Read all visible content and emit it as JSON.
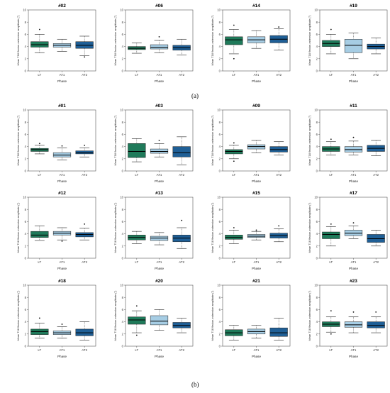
{
  "figure": {
    "panel_labels": [
      "(a)",
      "(b)"
    ],
    "colors": {
      "LT": "#1f7a5a",
      "AT1": "#a6cde4",
      "AT2": "#1f5f96",
      "whisker": "#444444",
      "axis": "#555555"
    }
  },
  "chart_data": [
    {
      "type": "box",
      "title": "#02",
      "xlabel": "Phase",
      "ylabel": "Mean T18 flexion-extension amplitude (°)",
      "categories": [
        "LT",
        "AT1",
        "AT2"
      ],
      "ylim": [
        0,
        10
      ],
      "yticks": [
        0,
        2,
        4,
        6,
        8,
        10
      ],
      "boxes": [
        {
          "min": 3.0,
          "q1": 3.9,
          "median": 4.3,
          "q3": 4.8,
          "max": 6.0,
          "outliers": [
            6.8
          ]
        },
        {
          "min": 3.2,
          "q1": 3.9,
          "median": 4.2,
          "q3": 4.5,
          "max": 5.2,
          "outliers": []
        },
        {
          "min": 2.5,
          "q1": 3.7,
          "median": 4.2,
          "q3": 4.8,
          "max": 5.7,
          "outliers": [
            2.3
          ]
        }
      ]
    },
    {
      "type": "box",
      "title": "#06",
      "xlabel": "Phase",
      "ylabel": "Mean T18 flexion-extension amplitude (°)",
      "categories": [
        "LT",
        "AT1",
        "AT2"
      ],
      "ylim": [
        0,
        10
      ],
      "yticks": [
        0,
        2,
        4,
        6,
        8,
        10
      ],
      "boxes": [
        {
          "min": 2.9,
          "q1": 3.5,
          "median": 3.7,
          "q3": 4.0,
          "max": 4.6,
          "outliers": []
        },
        {
          "min": 3.0,
          "q1": 3.6,
          "median": 3.9,
          "q3": 4.3,
          "max": 5.0,
          "outliers": [
            5.6
          ]
        },
        {
          "min": 2.6,
          "q1": 3.4,
          "median": 3.8,
          "q3": 4.2,
          "max": 5.2,
          "outliers": []
        }
      ]
    },
    {
      "type": "box",
      "title": "#14",
      "xlabel": "Phase",
      "ylabel": "Mean T18 flexion-extension amplitude (°)",
      "categories": [
        "LT",
        "AT1",
        "AT2"
      ],
      "ylim": [
        0,
        10
      ],
      "yticks": [
        0,
        2,
        4,
        6,
        8,
        10
      ],
      "boxes": [
        {
          "min": 2.8,
          "q1": 4.3,
          "median": 5.1,
          "q3": 5.6,
          "max": 6.8,
          "outliers": [
            2.0,
            7.5
          ]
        },
        {
          "min": 3.7,
          "q1": 4.6,
          "median": 5.1,
          "q3": 5.6,
          "max": 6.6,
          "outliers": []
        },
        {
          "min": 3.4,
          "q1": 4.6,
          "median": 5.2,
          "q3": 5.8,
          "max": 6.9,
          "outliers": [
            7.2
          ]
        }
      ]
    },
    {
      "type": "box",
      "title": "#19",
      "xlabel": "Phase",
      "ylabel": "Mean T18 flexion-extension amplitude (°)",
      "categories": [
        "LT",
        "AT1",
        "AT2"
      ],
      "ylim": [
        0,
        10
      ],
      "yticks": [
        0,
        2,
        4,
        6,
        8,
        10
      ],
      "boxes": [
        {
          "min": 2.8,
          "q1": 4.0,
          "median": 4.5,
          "q3": 5.0,
          "max": 6.0,
          "outliers": [
            6.8
          ]
        },
        {
          "min": 2.0,
          "q1": 3.0,
          "median": 4.2,
          "q3": 5.2,
          "max": 6.2,
          "outliers": []
        },
        {
          "min": 2.8,
          "q1": 3.6,
          "median": 4.0,
          "q3": 4.4,
          "max": 5.4,
          "outliers": []
        }
      ]
    },
    {
      "type": "box",
      "title": "#01",
      "xlabel": "Phase",
      "ylabel": "Mean T18 flexion-extension amplitude (°)",
      "categories": [
        "LT",
        "AT1",
        "AT2"
      ],
      "ylim": [
        0,
        10
      ],
      "yticks": [
        0,
        2,
        4,
        6,
        8,
        10
      ],
      "boxes": [
        {
          "min": 2.8,
          "q1": 3.2,
          "median": 3.5,
          "q3": 3.7,
          "max": 4.2,
          "outliers": [
            4.5
          ]
        },
        {
          "min": 1.8,
          "q1": 2.3,
          "median": 2.6,
          "q3": 3.0,
          "max": 3.8,
          "outliers": [
            4.1
          ]
        },
        {
          "min": 2.3,
          "q1": 2.8,
          "median": 3.0,
          "q3": 3.3,
          "max": 3.8,
          "outliers": [
            4.2
          ]
        }
      ]
    },
    {
      "type": "box",
      "title": "#03",
      "xlabel": "Phase",
      "ylabel": "Mean T18 flexion-extension amplitude (°)",
      "categories": [
        "LT",
        "AT1",
        "AT2"
      ],
      "ylim": [
        0,
        10
      ],
      "yticks": [
        0,
        2,
        4,
        6,
        8,
        10
      ],
      "boxes": [
        {
          "min": 1.5,
          "q1": 2.2,
          "median": 3.2,
          "q3": 4.5,
          "max": 5.3,
          "outliers": []
        },
        {
          "min": 2.3,
          "q1": 2.9,
          "median": 3.2,
          "q3": 3.6,
          "max": 4.5,
          "outliers": [
            5.0
          ]
        },
        {
          "min": 1.0,
          "q1": 2.3,
          "median": 3.0,
          "q3": 4.0,
          "max": 5.6,
          "outliers": []
        }
      ]
    },
    {
      "type": "box",
      "title": "#09",
      "xlabel": "Phase",
      "ylabel": "Mean T18 flexion-extension amplitude (°)",
      "categories": [
        "LT",
        "AT1",
        "AT2"
      ],
      "ylim": [
        0,
        10
      ],
      "yticks": [
        0,
        2,
        4,
        6,
        8,
        10
      ],
      "boxes": [
        {
          "min": 2.0,
          "q1": 2.8,
          "median": 3.2,
          "q3": 3.5,
          "max": 4.2,
          "outliers": [
            1.6,
            4.6
          ]
        },
        {
          "min": 3.0,
          "q1": 3.6,
          "median": 4.0,
          "q3": 4.3,
          "max": 5.0,
          "outliers": []
        },
        {
          "min": 2.6,
          "q1": 3.1,
          "median": 3.5,
          "q3": 4.0,
          "max": 4.8,
          "outliers": []
        }
      ]
    },
    {
      "type": "box",
      "title": "#11",
      "xlabel": "Phase",
      "ylabel": "Mean T18 flexion-extension amplitude (°)",
      "categories": [
        "LT",
        "AT1",
        "AT2"
      ],
      "ylim": [
        0,
        10
      ],
      "yticks": [
        0,
        2,
        4,
        6,
        8,
        10
      ],
      "boxes": [
        {
          "min": 2.6,
          "q1": 3.2,
          "median": 3.6,
          "q3": 4.0,
          "max": 4.8,
          "outliers": [
            5.2
          ]
        },
        {
          "min": 2.6,
          "q1": 3.1,
          "median": 3.5,
          "q3": 4.0,
          "max": 4.9,
          "outliers": [
            5.5
          ]
        },
        {
          "min": 2.5,
          "q1": 3.2,
          "median": 3.7,
          "q3": 4.2,
          "max": 5.0,
          "outliers": []
        }
      ]
    },
    {
      "type": "box",
      "title": "#12",
      "xlabel": "Phase",
      "ylabel": "Mean T18 flexion-extension amplitude (°)",
      "categories": [
        "LT",
        "AT1",
        "AT2"
      ],
      "ylim": [
        0,
        10
      ],
      "yticks": [
        0,
        2,
        4,
        6,
        8,
        10
      ],
      "boxes": [
        {
          "min": 2.9,
          "q1": 3.4,
          "median": 3.8,
          "q3": 4.4,
          "max": 5.3,
          "outliers": []
        },
        {
          "min": 3.0,
          "q1": 3.8,
          "median": 4.1,
          "q3": 4.4,
          "max": 5.0,
          "outliers": [
            2.8
          ]
        },
        {
          "min": 3.0,
          "q1": 3.5,
          "median": 3.9,
          "q3": 4.2,
          "max": 4.9,
          "outliers": [
            5.6
          ]
        }
      ]
    },
    {
      "type": "box",
      "title": "#13",
      "xlabel": "Phase",
      "ylabel": "Mean T18 flexion-extension amplitude (°)",
      "categories": [
        "LT",
        "AT1",
        "AT2"
      ],
      "ylim": [
        0,
        10
      ],
      "yticks": [
        0,
        2,
        4,
        6,
        8,
        10
      ],
      "boxes": [
        {
          "min": 2.4,
          "q1": 3.0,
          "median": 3.4,
          "q3": 3.8,
          "max": 4.4,
          "outliers": []
        },
        {
          "min": 2.2,
          "q1": 2.9,
          "median": 3.3,
          "q3": 3.6,
          "max": 4.2,
          "outliers": []
        },
        {
          "min": 1.6,
          "q1": 2.7,
          "median": 3.3,
          "q3": 3.8,
          "max": 5.0,
          "outliers": [
            6.2
          ]
        }
      ]
    },
    {
      "type": "box",
      "title": "#15",
      "xlabel": "Phase",
      "ylabel": "Mean T18 flexion-extension amplitude (°)",
      "categories": [
        "LT",
        "AT1",
        "AT2"
      ],
      "ylim": [
        0,
        10
      ],
      "yticks": [
        0,
        2,
        4,
        6,
        8,
        10
      ],
      "boxes": [
        {
          "min": 2.4,
          "q1": 3.1,
          "median": 3.4,
          "q3": 3.8,
          "max": 4.6,
          "outliers": [
            5.0
          ]
        },
        {
          "min": 3.0,
          "q1": 3.4,
          "median": 3.6,
          "q3": 3.9,
          "max": 4.4,
          "outliers": [
            4.6
          ]
        },
        {
          "min": 2.7,
          "q1": 3.3,
          "median": 3.7,
          "q3": 4.1,
          "max": 4.8,
          "outliers": [
            5.3
          ]
        }
      ]
    },
    {
      "type": "box",
      "title": "#17",
      "xlabel": "Phase",
      "ylabel": "Mean T18 flexion-extension amplitude (°)",
      "categories": [
        "LT",
        "AT1",
        "AT2"
      ],
      "ylim": [
        0,
        10
      ],
      "yticks": [
        0,
        2,
        4,
        6,
        8,
        10
      ],
      "boxes": [
        {
          "min": 2.0,
          "q1": 3.2,
          "median": 3.9,
          "q3": 4.3,
          "max": 5.2,
          "outliers": [
            5.6
          ]
        },
        {
          "min": 3.2,
          "q1": 3.7,
          "median": 4.1,
          "q3": 4.6,
          "max": 5.3,
          "outliers": [
            5.8
          ]
        },
        {
          "min": 2.0,
          "q1": 2.6,
          "median": 3.2,
          "q3": 3.9,
          "max": 4.6,
          "outliers": []
        }
      ]
    },
    {
      "type": "box",
      "title": "#18",
      "xlabel": "Phase",
      "ylabel": "Mean T18 flexion-extension amplitude (°)",
      "categories": [
        "LT",
        "AT1",
        "AT2"
      ],
      "ylim": [
        0,
        10
      ],
      "yticks": [
        0,
        2,
        4,
        6,
        8,
        10
      ],
      "boxes": [
        {
          "min": 1.3,
          "q1": 1.9,
          "median": 2.4,
          "q3": 2.8,
          "max": 3.8,
          "outliers": [
            4.6
          ]
        },
        {
          "min": 1.3,
          "q1": 1.9,
          "median": 2.2,
          "q3": 2.5,
          "max": 3.2,
          "outliers": [
            3.6
          ]
        },
        {
          "min": 1.0,
          "q1": 1.7,
          "median": 2.2,
          "q3": 2.8,
          "max": 4.0,
          "outliers": []
        }
      ]
    },
    {
      "type": "box",
      "title": "#20",
      "xlabel": "Phase",
      "ylabel": "Mean T18 flexion-extension amplitude (°)",
      "categories": [
        "LT",
        "AT1",
        "AT2"
      ],
      "ylim": [
        0,
        10
      ],
      "yticks": [
        0,
        2,
        4,
        6,
        8,
        10
      ],
      "boxes": [
        {
          "min": 2.2,
          "q1": 3.6,
          "median": 4.3,
          "q3": 4.8,
          "max": 5.8,
          "outliers": [
            6.6,
            1.8
          ]
        },
        {
          "min": 2.6,
          "q1": 3.5,
          "median": 4.1,
          "q3": 5.0,
          "max": 6.0,
          "outliers": []
        },
        {
          "min": 2.2,
          "q1": 3.0,
          "median": 3.4,
          "q3": 3.9,
          "max": 4.6,
          "outliers": []
        }
      ]
    },
    {
      "type": "box",
      "title": "#21",
      "xlabel": "Phase",
      "ylabel": "Mean T18 flexion-extension amplitude (°)",
      "categories": [
        "LT",
        "AT1",
        "AT2"
      ],
      "ylim": [
        0,
        10
      ],
      "yticks": [
        0,
        2,
        4,
        6,
        8,
        10
      ],
      "boxes": [
        {
          "min": 1.0,
          "q1": 1.7,
          "median": 2.2,
          "q3": 2.7,
          "max": 3.4,
          "outliers": []
        },
        {
          "min": 1.3,
          "q1": 2.0,
          "median": 2.4,
          "q3": 2.8,
          "max": 3.4,
          "outliers": []
        },
        {
          "min": 1.0,
          "q1": 1.6,
          "median": 2.2,
          "q3": 3.0,
          "max": 4.6,
          "outliers": []
        }
      ]
    },
    {
      "type": "box",
      "title": "#23",
      "xlabel": "Phase",
      "ylabel": "Mean T18 flexion-extension amplitude (°)",
      "categories": [
        "LT",
        "AT1",
        "AT2"
      ],
      "ylim": [
        0,
        10
      ],
      "yticks": [
        0,
        2,
        4,
        6,
        8,
        10
      ],
      "boxes": [
        {
          "min": 2.3,
          "q1": 3.2,
          "median": 3.6,
          "q3": 4.0,
          "max": 4.8,
          "outliers": [
            2.0,
            5.8
          ]
        },
        {
          "min": 2.2,
          "q1": 3.1,
          "median": 3.5,
          "q3": 4.0,
          "max": 4.8,
          "outliers": [
            5.6
          ]
        },
        {
          "min": 2.2,
          "q1": 3.0,
          "median": 3.4,
          "q3": 4.0,
          "max": 4.8,
          "outliers": [
            5.6
          ]
        }
      ]
    }
  ]
}
